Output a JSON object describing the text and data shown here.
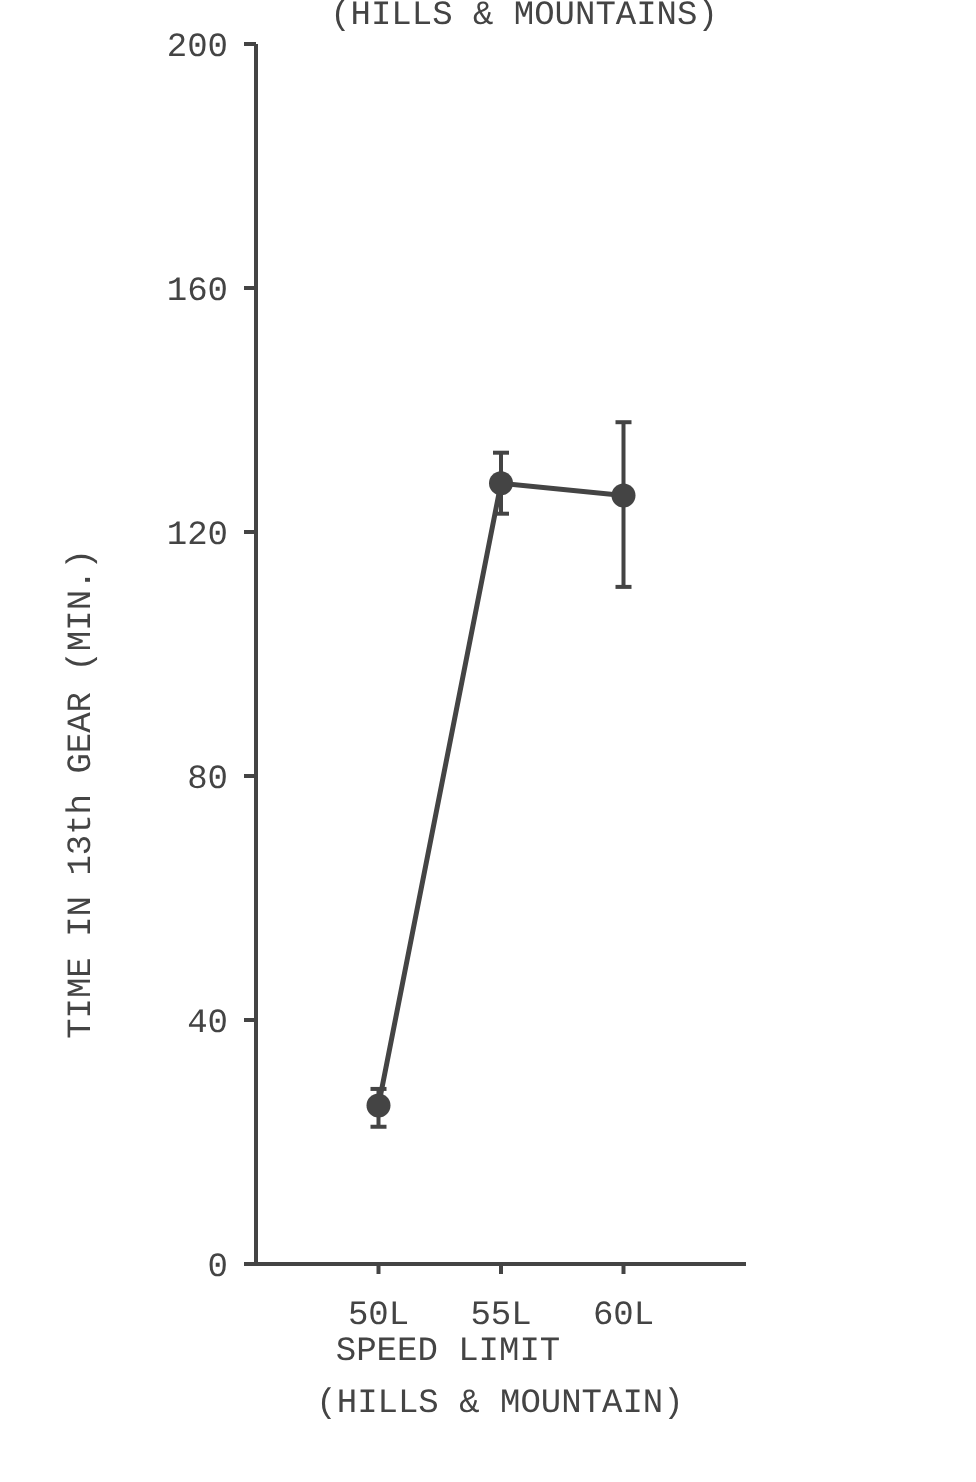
{
  "chart_data": {
    "type": "line",
    "title": "(HILLS & MOUNTAINS)",
    "xlabel": "SPEED LIMIT\n(HILLS & MOUNTAIN)",
    "ylabel": "TIME IN 13th GEAR (MIN.)",
    "categories": [
      "50L",
      "55L",
      "60L"
    ],
    "series": [
      {
        "color": "#444444",
        "values": [
          26,
          128,
          126
        ],
        "errors": [
          [
            22.5,
            28.7
          ],
          [
            123,
            133
          ],
          [
            111,
            138
          ]
        ]
      }
    ],
    "ylim": [
      0,
      200
    ],
    "yticks": [
      0,
      40,
      80,
      120,
      160,
      200
    ],
    "grid": false,
    "marker": "circle",
    "line_style": "solid"
  }
}
